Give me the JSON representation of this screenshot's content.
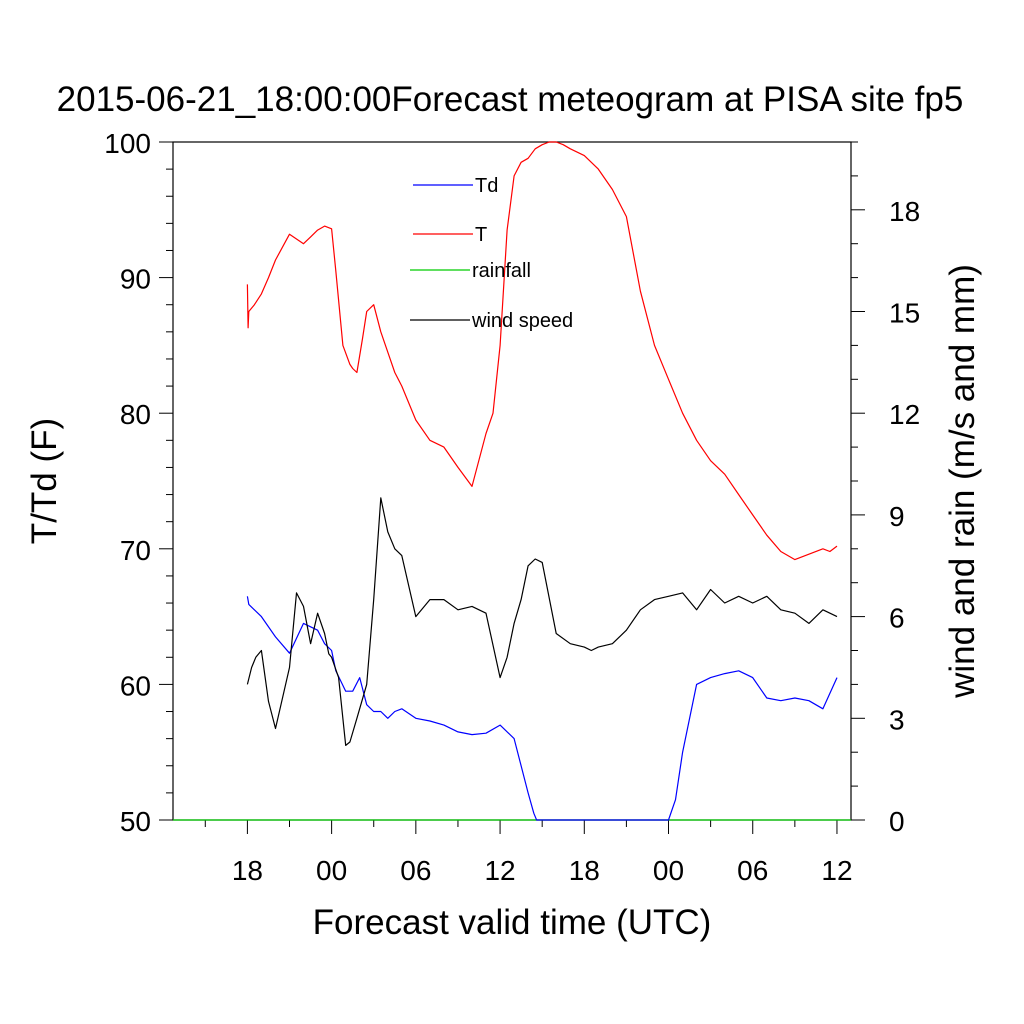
{
  "chart_data": {
    "type": "line",
    "title": "2015-06-21_18:00:00Forecast meteogram at PISA site fp5",
    "xlabel": "Forecast valid time (UTC)",
    "ylabel_left": "T/Td (F)",
    "ylabel_right": "wind and rain (m/s and mm)",
    "x_tick_labels": [
      "18",
      "00",
      "06",
      "12",
      "18",
      "00",
      "06",
      "12"
    ],
    "x_tick_hours": [
      0,
      6,
      12,
      18,
      24,
      30,
      36,
      42
    ],
    "x_range_hours": [
      -5.3,
      43
    ],
    "ylim_left": [
      50,
      100
    ],
    "ylim_right": [
      0,
      20
    ],
    "y_ticks_left": [
      50,
      60,
      70,
      80,
      90,
      100
    ],
    "y_ticks_right": [
      0,
      3,
      6,
      9,
      12,
      15,
      18
    ],
    "grid": false,
    "legend_position": "upper-center inside plot",
    "legend": [
      {
        "label": "Td",
        "color": "#0000ff"
      },
      {
        "label": "T",
        "color": "#ff0000"
      },
      {
        "label": "rainfall",
        "color": "#00cc00"
      },
      {
        "label": "wind speed",
        "color": "#000000"
      }
    ],
    "series": [
      {
        "name": "T",
        "axis": "left",
        "color": "#ff0000",
        "x": [
          0,
          0.05,
          0.1,
          0.5,
          1,
          1.5,
          2,
          3,
          4,
          4.5,
          5,
          5.5,
          6,
          6.3,
          6.8,
          7.3,
          7.5,
          7.8,
          8.2,
          8.5,
          9,
          9.5,
          10,
          10.5,
          11,
          12,
          13,
          14,
          15,
          16,
          17,
          17.5,
          18,
          18.5,
          19,
          19.5,
          20,
          20.5,
          21,
          21.5,
          22,
          22.5,
          23,
          24,
          25,
          26,
          27,
          28,
          29,
          30,
          31,
          32,
          33,
          34,
          35,
          36,
          37,
          38,
          39,
          40,
          41,
          41.5,
          42
        ],
        "values": [
          89.5,
          86.3,
          87.5,
          88.0,
          88.8,
          90.0,
          91.3,
          93.2,
          92.5,
          93.0,
          93.5,
          93.8,
          93.6,
          90.5,
          85.0,
          83.6,
          83.3,
          83.0,
          85.5,
          87.5,
          88.0,
          86.0,
          84.5,
          83.0,
          82.0,
          79.5,
          78.0,
          77.5,
          76.0,
          74.6,
          78.5,
          80.0,
          85.0,
          93.5,
          97.5,
          98.5,
          98.8,
          99.5,
          99.8,
          100.0,
          100.0,
          99.8,
          99.5,
          99.0,
          98.0,
          96.5,
          94.5,
          89.0,
          85.0,
          82.5,
          80.0,
          78.0,
          76.5,
          75.5,
          74.0,
          72.5,
          71.0,
          69.8,
          69.2,
          69.6,
          70.0,
          69.8,
          70.2
        ]
      },
      {
        "name": "Td",
        "axis": "left",
        "color": "#0000ff",
        "x": [
          0,
          0.1,
          1,
          2,
          3,
          4,
          5,
          5.5,
          6,
          6.3,
          7,
          7.5,
          8,
          8.5,
          9,
          9.5,
          10,
          10.5,
          11,
          12,
          13,
          14,
          15,
          16,
          17,
          18,
          19,
          20,
          20.4,
          20.6,
          30,
          30.5,
          31,
          32,
          33,
          34,
          35,
          36,
          37,
          38,
          39,
          40,
          41,
          42
        ],
        "values": [
          66.5,
          65.9,
          65.0,
          63.5,
          62.3,
          64.5,
          64.0,
          63.0,
          62.5,
          61.0,
          59.5,
          59.5,
          60.5,
          58.5,
          58.0,
          58.0,
          57.5,
          58.0,
          58.2,
          57.5,
          57.3,
          57.0,
          56.5,
          56.3,
          56.4,
          57.0,
          56.0,
          52.0,
          50.5,
          50.0,
          50.0,
          51.5,
          55.0,
          60.0,
          60.5,
          60.8,
          61.0,
          60.5,
          59.0,
          58.8,
          59.0,
          58.8,
          58.2,
          60.5
        ]
      },
      {
        "name": "wind speed",
        "axis": "right",
        "color": "#000000",
        "x": [
          0,
          0.3,
          0.6,
          1,
          1.5,
          2,
          2.5,
          3,
          3.5,
          4,
          4.5,
          5,
          5.5,
          5.8,
          6,
          6.5,
          7,
          7.3,
          7.8,
          8.5,
          9,
          9.5,
          10,
          10.5,
          11,
          12,
          13,
          14,
          15,
          16,
          17,
          18,
          18.5,
          19,
          19.5,
          20,
          20.5,
          21,
          22,
          23,
          24,
          24.5,
          25,
          26,
          27,
          28,
          29,
          30,
          31,
          32,
          33,
          34,
          35,
          36,
          37,
          38,
          39,
          40,
          41,
          42
        ],
        "values": [
          4.0,
          4.5,
          4.8,
          5.0,
          3.5,
          2.7,
          3.6,
          4.5,
          6.7,
          6.3,
          5.2,
          6.1,
          5.5,
          4.9,
          4.8,
          4.2,
          2.2,
          2.3,
          3.0,
          4.0,
          6.5,
          9.5,
          8.5,
          8.0,
          7.8,
          6.0,
          6.5,
          6.5,
          6.2,
          6.3,
          6.1,
          4.2,
          4.8,
          5.8,
          6.5,
          7.5,
          7.7,
          7.6,
          5.5,
          5.2,
          5.1,
          5.0,
          5.1,
          5.2,
          5.6,
          6.2,
          6.5,
          6.6,
          6.7,
          6.2,
          6.8,
          6.4,
          6.6,
          6.4,
          6.6,
          6.2,
          6.1,
          5.8,
          6.2,
          6.0
        ]
      },
      {
        "name": "rainfall",
        "axis": "right",
        "color": "#00cc00",
        "x": [
          -5.3,
          43
        ],
        "values": [
          0,
          0
        ]
      }
    ]
  }
}
